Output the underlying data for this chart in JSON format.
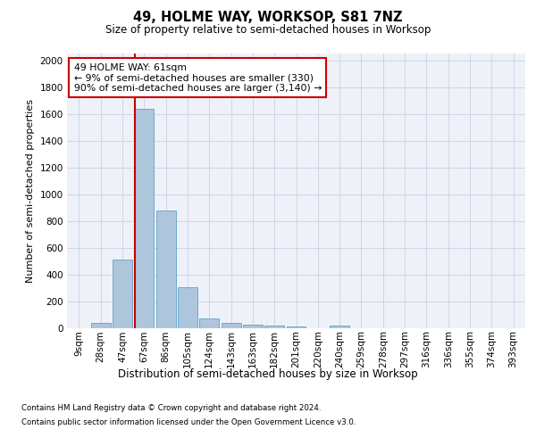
{
  "title": "49, HOLME WAY, WORKSOP, S81 7NZ",
  "subtitle": "Size of property relative to semi-detached houses in Worksop",
  "xlabel": "Distribution of semi-detached houses by size in Worksop",
  "ylabel": "Number of semi-detached properties",
  "categories": [
    "9sqm",
    "28sqm",
    "47sqm",
    "67sqm",
    "86sqm",
    "105sqm",
    "124sqm",
    "143sqm",
    "163sqm",
    "182sqm",
    "201sqm",
    "220sqm",
    "240sqm",
    "259sqm",
    "278sqm",
    "297sqm",
    "316sqm",
    "336sqm",
    "355sqm",
    "374sqm",
    "393sqm"
  ],
  "values": [
    0,
    35,
    510,
    1640,
    875,
    305,
    70,
    40,
    25,
    15,
    10,
    0,
    15,
    0,
    0,
    0,
    0,
    0,
    0,
    0,
    0
  ],
  "bar_color": "#aec6dc",
  "bar_edge_color": "#6fa8cc",
  "vline_color": "#cc0000",
  "annotation_text": "49 HOLME WAY: 61sqm\n← 9% of semi-detached houses are smaller (330)\n90% of semi-detached houses are larger (3,140) →",
  "annotation_box_color": "white",
  "annotation_box_edge_color": "#cc0000",
  "ylim": [
    0,
    2050
  ],
  "yticks": [
    0,
    200,
    400,
    600,
    800,
    1000,
    1200,
    1400,
    1600,
    1800,
    2000
  ],
  "grid_color": "#ccd6e8",
  "background_color": "#eef2f8",
  "footer_line1": "Contains HM Land Registry data © Crown copyright and database right 2024.",
  "footer_line2": "Contains public sector information licensed under the Open Government Licence v3.0."
}
